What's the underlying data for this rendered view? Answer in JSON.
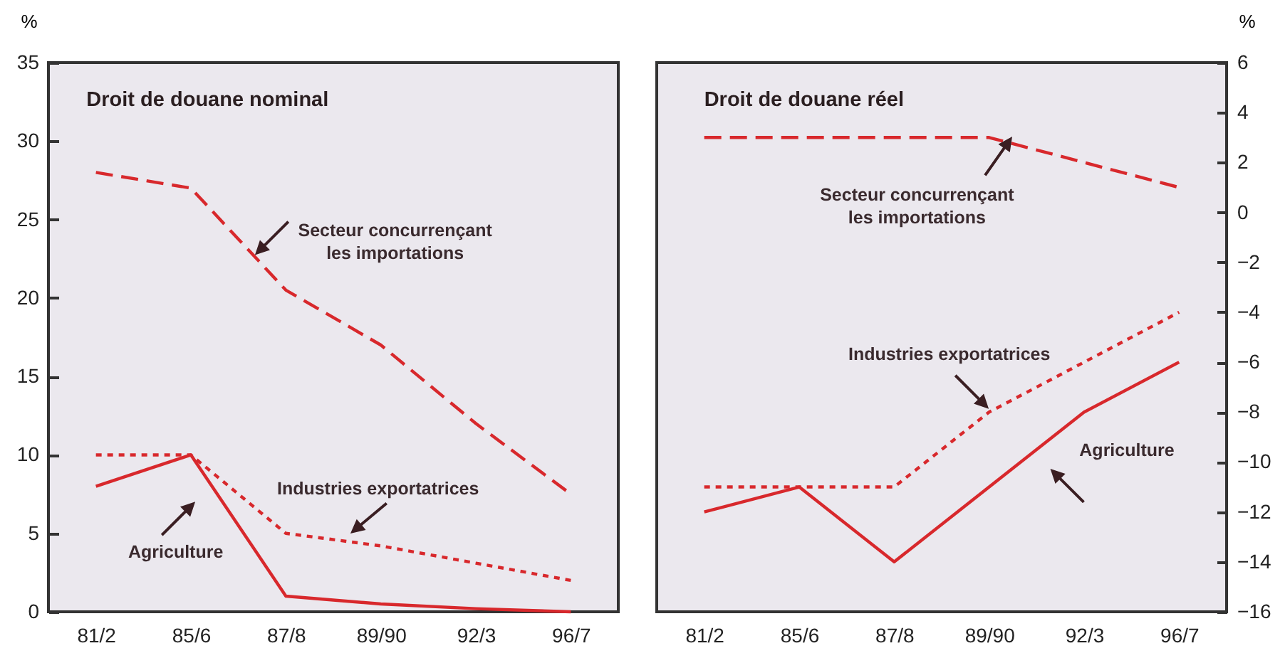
{
  "chart_data": [
    {
      "type": "line",
      "title": "Droit de douane nominal",
      "ylabel": "%",
      "categories": [
        "81/2",
        "85/6",
        "87/8",
        "89/90",
        "92/3",
        "96/7"
      ],
      "ylim": [
        0,
        35
      ],
      "yticks": [
        0,
        5,
        10,
        15,
        20,
        25,
        30,
        35
      ],
      "series": [
        {
          "name": "Secteur concurrençant les importations",
          "color": "#d8282c",
          "line_style": "dashed",
          "values": [
            28,
            27,
            20.5,
            17,
            12,
            7.5
          ]
        },
        {
          "name": "Industries exportatrices",
          "color": "#d8282c",
          "line_style": "dotted",
          "values": [
            10,
            10,
            5,
            4.2,
            3.1,
            2
          ]
        },
        {
          "name": "Agriculture",
          "color": "#d8282c",
          "line_style": "solid",
          "values": [
            8,
            10,
            1,
            0.5,
            0.2,
            0
          ]
        }
      ]
    },
    {
      "type": "line",
      "title": "Droit de douane réel",
      "ylabel": "%",
      "categories": [
        "81/2",
        "85/6",
        "87/8",
        "89/90",
        "92/3",
        "96/7"
      ],
      "ylim": [
        -16,
        6
      ],
      "yticks": [
        -16,
        -14,
        -12,
        -10,
        -8,
        -6,
        -4,
        -2,
        0,
        2,
        4,
        6
      ],
      "series": [
        {
          "name": "Secteur concurrençant les importations",
          "color": "#d8282c",
          "line_style": "dashed",
          "values": [
            3,
            3,
            3,
            3,
            2,
            1
          ]
        },
        {
          "name": "Industries exportatrices",
          "color": "#d8282c",
          "line_style": "dotted",
          "values": [
            -11,
            -11,
            -11,
            -8,
            -6,
            -4
          ]
        },
        {
          "name": "Agriculture",
          "color": "#d8282c",
          "line_style": "solid",
          "values": [
            -12,
            -11,
            -14,
            -11,
            -8,
            -6
          ]
        }
      ]
    }
  ]
}
